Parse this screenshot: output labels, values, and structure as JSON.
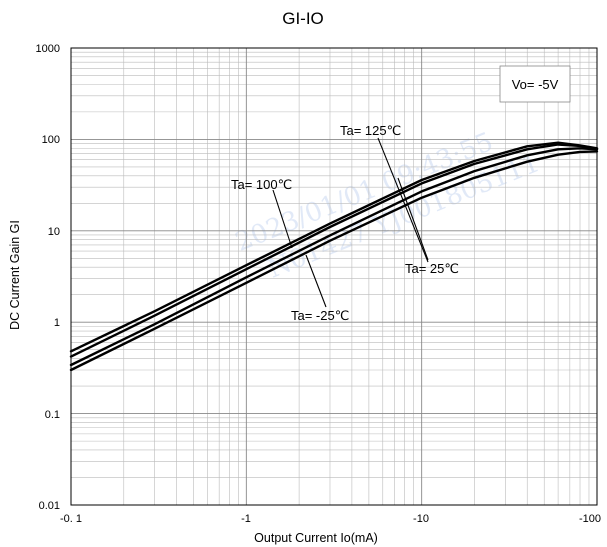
{
  "chart_data": {
    "type": "line",
    "title": "GI-IO",
    "xlabel": "Output Current   Io(mA)",
    "ylabel": "DC Current Gain  GI",
    "x_scale": "log",
    "y_scale": "log",
    "xlim": [
      -0.1,
      -100
    ],
    "ylim": [
      0.01,
      1000
    ],
    "grid": true,
    "x_tick_labels": [
      "-0. 1",
      "-1",
      "-10",
      "-100"
    ],
    "y_tick_labels": [
      "0.01",
      "0.1",
      "1",
      "10",
      "100",
      "1000"
    ],
    "legend_box": "Vo= -5V",
    "series": [
      {
        "name": "Ta= 125℃",
        "x": [
          -0.1,
          -0.3,
          -1,
          -3,
          -10,
          -20,
          -40,
          -60,
          -80,
          -100
        ],
        "y": [
          0.48,
          1.32,
          4.2,
          12,
          36,
          58,
          84,
          92,
          86,
          80
        ]
      },
      {
        "name": "Ta= 100℃",
        "x": [
          -0.1,
          -0.3,
          -1,
          -3,
          -10,
          -20,
          -40,
          -60,
          -80,
          -100
        ],
        "y": [
          0.42,
          1.18,
          3.8,
          11,
          33,
          54,
          78,
          88,
          85,
          79
        ]
      },
      {
        "name": "Ta= 25℃",
        "x": [
          -0.1,
          -0.3,
          -1,
          -3,
          -10,
          -20,
          -40,
          -60,
          -80,
          -100
        ],
        "y": [
          0.34,
          0.95,
          3.1,
          8.9,
          27,
          45,
          67,
          78,
          80,
          78
        ]
      },
      {
        "name": "Ta= -25℃",
        "x": [
          -0.1,
          -0.3,
          -1,
          -3,
          -10,
          -20,
          -40,
          -60,
          -80,
          -100
        ],
        "y": [
          0.3,
          0.85,
          2.7,
          7.8,
          23,
          38,
          57,
          68,
          73,
          74
        ]
      }
    ],
    "annotations": [
      "Ta= 125℃",
      "Ta= 100℃",
      "Ta= 25℃",
      "Ta= -25℃"
    ],
    "watermark": [
      "2023/01/01 09:43:55",
      "N01427  YJ001805111"
    ]
  }
}
